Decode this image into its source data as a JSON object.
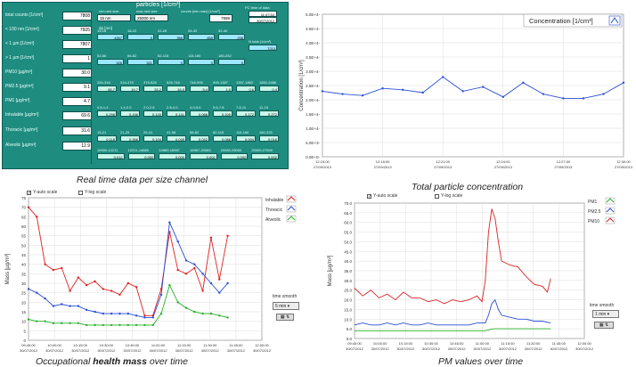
{
  "panel1": {
    "left_rows": [
      {
        "label": "total counts [1/cm³]",
        "value": "7808"
      },
      {
        "label": "< 100 nm [1/cm³]",
        "value": "7605"
      },
      {
        "label": "< 1 µm [1/cm³]",
        "value": "7807"
      },
      {
        "label": "> 1 µm [1/cm³]",
        "value": "1"
      },
      {
        "label": "PM10 [µg/m³]",
        "value": "30.0"
      },
      {
        "label": "PM2.5 [µg/m³]",
        "value": "9.1"
      },
      {
        "label": "PM1 [µg/m³]",
        "value": "4.7"
      },
      {
        "label": "Inhalable [µg/m³]",
        "value": "69.6"
      },
      {
        "label": "Thoracic [µg/m³]",
        "value": "31.6"
      },
      {
        "label": "Alveolic [µg/m³]",
        "value": "12.9"
      }
    ],
    "header_title": "particles [1/cm³]",
    "min_label": "min.ned size",
    "max_label": "max.ned size",
    "counts_label": "counts [min.max] [1/cm³]",
    "pc_label": "PC time of data",
    "min_value": "15 nm",
    "max_value": "25000 nm",
    "counts_value": "7898",
    "pc_time": "11:47:54",
    "pc_date": "30/07/2012",
    "dp_label": "dp [nm]",
    "nt_label": "N total (1/cm³)",
    "nt_value": "7213",
    "groups": [
      {
        "ranges": [
          "15-18",
          "18-22",
          "22-26",
          "26-32",
          "32-40"
        ],
        "values": [
          "4357",
          "0",
          "356",
          "855",
          "298"
        ]
      },
      {
        "ranges": [
          "52-66",
          "66-82",
          "82-115",
          "115-180",
          "180-252"
        ],
        "values": [
          "326",
          "321",
          "0",
          "0",
          "0"
        ]
      },
      {
        "ranges": [
          "250-316",
          "316-378",
          "378-526",
          "526-748",
          "748-995",
          "995-1357",
          "1357-1852",
          "1852-2486"
        ],
        "values": [
          "65.7",
          "19.7",
          "33.2",
          "16.0",
          "5.4",
          "1.0",
          "0.6",
          "0.4"
        ]
      },
      {
        "ranges": [
          "0.8-1.4",
          "1.4-2.0",
          "2.0-2.8",
          "2.8-4.0",
          "4.0-5.6",
          "5.6-7.8",
          "7.8-11",
          "11-15"
        ],
        "values": [
          "0.298",
          "0.156",
          "0.120",
          "0.141",
          "0.088",
          "0.109",
          "0.172",
          "0.272"
        ]
      },
      {
        "ranges": [
          "15-21",
          "21-29",
          "29-41",
          "41-58",
          "58-82",
          "82-115",
          "115-160",
          "160-225"
        ],
        "values": [
          "0.118",
          "0.356",
          "0.104",
          "0.045",
          "0.042",
          "0.088",
          "0.004",
          "0.016"
        ]
      },
      {
        "ranges": [
          "10000-12211",
          "12211-14880",
          "14880-16987",
          "16987-20083",
          "20083-25000",
          "25000-27500"
        ],
        "values": [
          "0.012",
          "0.000",
          "0.000",
          "0.002",
          "0.000",
          "0.002"
        ]
      }
    ],
    "caption": "Real time data per size channel"
  },
  "chart_conc": {
    "chart_data": {
      "type": "line",
      "legend": "Concentration [1/cm³]",
      "ylabel": "Concentration [1/cm³]",
      "yticks": [
        "0.0E+0-",
        "5.0E+3-",
        "1.0E+4-",
        "1.5E+4-",
        "2.0E+4-",
        "2.5E+4-",
        "3.0E+4-",
        "3.5E+4-",
        "4.0E+4-",
        "4.5E+4-",
        "5.0E+4-"
      ],
      "ylim": [
        0,
        50000
      ],
      "xticks": [
        {
          "t": "12:15:00",
          "d": "27/09/2013"
        },
        {
          "t": "12:18:00",
          "d": "27/09/2013"
        },
        {
          "t": "12:21:00",
          "d": "27/09/2013"
        },
        {
          "t": "12:24:00",
          "d": "27/09/2013"
        },
        {
          "t": "12:27:00",
          "d": "27/09/2013"
        },
        {
          "t": "12:30:00",
          "d": "27/09/2013"
        }
      ],
      "x": [
        0,
        1,
        2,
        3,
        4,
        5,
        6,
        7,
        8,
        9,
        10,
        11,
        12,
        13,
        14,
        15
      ],
      "y": [
        23000,
        22000,
        21500,
        24000,
        23500,
        22500,
        28000,
        23000,
        24500,
        21000,
        26000,
        22000,
        20500,
        20500,
        22000,
        26000
      ],
      "grid": true
    },
    "caption": "Total particle concentration"
  },
  "chart_health": {
    "chart_data": {
      "type": "line",
      "ylabel": "Mass [µg/m³]",
      "yticks": [
        "0",
        "5",
        "10",
        "15",
        "20",
        "25",
        "30",
        "35",
        "40",
        "45",
        "50",
        "55",
        "60",
        "65",
        "70",
        "75"
      ],
      "ylim": [
        0,
        75
      ],
      "xticks": [
        {
          "t": "09:45:00",
          "d": "30/07/2012"
        },
        {
          "t": "10:00:00",
          "d": "30/07/2012"
        },
        {
          "t": "10:15:00",
          "d": "30/07/2012"
        },
        {
          "t": "10:30:00",
          "d": "30/07/2012"
        },
        {
          "t": "10:45:00",
          "d": "30/07/2012"
        },
        {
          "t": "11:00:00",
          "d": "30/07/2012"
        },
        {
          "t": "11:15:00",
          "d": "30/07/2012"
        },
        {
          "t": "11:30:00",
          "d": "30/07/2012"
        },
        {
          "t": "11:45:00",
          "d": "30/07/2012"
        },
        {
          "t": "12:00:00",
          "d": "30/07/2012"
        }
      ],
      "xlim": [
        0,
        135
      ],
      "series": [
        {
          "name": "Inhalable",
          "color": "#e02020",
          "x": [
            0,
            5,
            10,
            15,
            20,
            25,
            30,
            35,
            40,
            45,
            50,
            55,
            60,
            65,
            70,
            75,
            80,
            85,
            90,
            95,
            100,
            105,
            110,
            115,
            120
          ],
          "y": [
            70,
            65,
            40,
            37,
            38,
            26,
            33,
            29,
            31,
            27,
            26,
            24,
            30,
            28,
            13,
            13,
            27,
            57,
            37,
            35,
            38,
            26,
            54,
            32,
            55
          ]
        },
        {
          "name": "Thoracic",
          "color": "#2a4fd8",
          "x": [
            0,
            5,
            10,
            15,
            20,
            25,
            30,
            35,
            40,
            45,
            50,
            55,
            60,
            65,
            70,
            75,
            80,
            85,
            90,
            95,
            100,
            105,
            110,
            115,
            120
          ],
          "y": [
            27,
            25,
            22,
            18,
            19,
            18,
            18,
            16,
            15,
            14,
            14,
            14,
            14,
            13,
            12,
            12,
            24,
            62,
            52,
            42,
            40,
            35,
            30,
            25,
            30
          ]
        },
        {
          "name": "Alveolic",
          "color": "#26b026",
          "x": [
            0,
            5,
            10,
            15,
            20,
            25,
            30,
            35,
            40,
            45,
            50,
            55,
            60,
            65,
            70,
            75,
            80,
            85,
            90,
            95,
            100,
            105,
            110,
            115,
            120
          ],
          "y": [
            11,
            10,
            10,
            9,
            9,
            9,
            9,
            8,
            8,
            8,
            8,
            8,
            8,
            8,
            8,
            8,
            14,
            29,
            20,
            17,
            15,
            14,
            14,
            13,
            12
          ]
        }
      ],
      "grid": true
    },
    "options": {
      "y_auto": "Y-auto scale",
      "y_log": "Y-log scale",
      "smooth_label": "time smooth",
      "smooth_value": "5 min"
    },
    "caption_prefix": "Occupational ",
    "caption_bold": "health mass",
    "caption_suffix": " over time"
  },
  "chart_pm": {
    "chart_data": {
      "type": "line",
      "ylabel": "Mass [µg/m³]",
      "yticks": [
        "0.0",
        "5.0",
        "10.0",
        "15.0",
        "20.0",
        "25.0",
        "30.0",
        "35.0",
        "40.0",
        "45.0",
        "50.0",
        "55.0",
        "60.0",
        "65.0",
        "70.0"
      ],
      "ylim": [
        0,
        70
      ],
      "xticks": [
        {
          "t": "09:45:00",
          "d": "30/07/2012"
        },
        {
          "t": "10:00:00",
          "d": "30/07/2012"
        },
        {
          "t": "10:15:00",
          "d": "30/07/2012"
        },
        {
          "t": "10:30:00",
          "d": "30/07/2012"
        },
        {
          "t": "10:45:00",
          "d": "30/07/2012"
        },
        {
          "t": "11:00:00",
          "d": "30/07/2012"
        },
        {
          "t": "11:15:00",
          "d": "30/07/2012"
        },
        {
          "t": "11:30:00",
          "d": "30/07/2012"
        },
        {
          "t": "11:45:00",
          "d": "30/07/2012"
        },
        {
          "t": "12:00:00",
          "d": "30/07/2012"
        }
      ],
      "xlim": [
        0,
        135
      ],
      "series": [
        {
          "name": "PM1",
          "color": "#26b026",
          "x": [
            0,
            10,
            20,
            30,
            40,
            50,
            60,
            70,
            80,
            85,
            90,
            100,
            110,
            120
          ],
          "y": [
            4,
            4,
            4,
            4,
            4,
            4,
            4,
            4,
            4,
            5,
            5,
            5,
            5,
            5
          ]
        },
        {
          "name": "PM2.5",
          "color": "#2a4fd8",
          "x": [
            0,
            5,
            10,
            15,
            20,
            25,
            30,
            35,
            40,
            45,
            50,
            55,
            60,
            65,
            70,
            75,
            80,
            82,
            84,
            86,
            88,
            90,
            95,
            100,
            105,
            110,
            115,
            120
          ],
          "y": [
            7,
            8,
            7,
            7,
            8,
            7,
            8,
            7,
            7,
            8,
            7,
            7,
            7,
            7,
            7,
            8,
            8,
            12,
            18,
            20,
            15,
            12,
            11,
            10,
            10,
            9,
            9,
            8
          ]
        },
        {
          "name": "PM10",
          "color": "#e02020",
          "x": [
            0,
            5,
            10,
            15,
            20,
            25,
            30,
            35,
            40,
            45,
            50,
            55,
            60,
            65,
            70,
            75,
            78,
            80,
            82,
            84,
            86,
            88,
            90,
            95,
            100,
            105,
            110,
            115,
            118,
            120
          ],
          "y": [
            26,
            22,
            25,
            21,
            23,
            20,
            24,
            21,
            21,
            19,
            20,
            18,
            20,
            19,
            20,
            22,
            19,
            30,
            55,
            67,
            62,
            50,
            40,
            38,
            37,
            32,
            28,
            27,
            24,
            31
          ]
        }
      ],
      "grid": true
    },
    "options": {
      "y_auto": "Y-auto scale",
      "y_log": "Y-log scale",
      "smooth_label": "time smooth",
      "smooth_value": "1 min"
    },
    "caption": "PM values over time"
  }
}
